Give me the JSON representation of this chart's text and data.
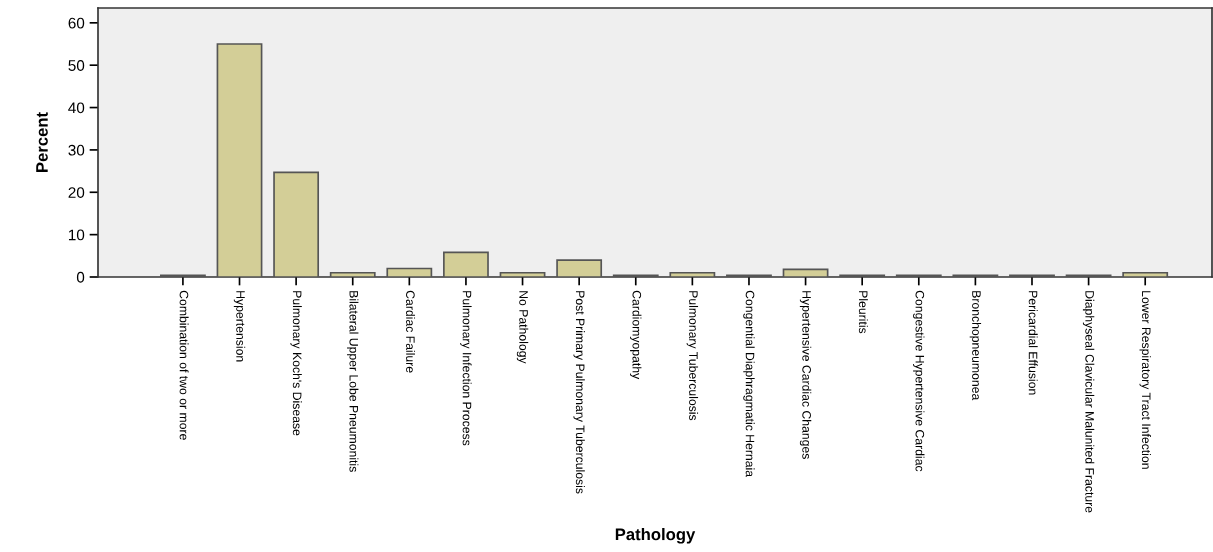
{
  "chart_data": {
    "type": "bar",
    "xlabel": "Pathology",
    "ylabel": "Percent",
    "categories": [
      "Combination of two or more",
      "Hypertension",
      "Pulmonary Koch's Disease",
      "Bilateral Upper Lobe Pneumonitis",
      "Cardiac Failure",
      "Pulmonary Infection Process",
      "No Pathology",
      "Post Primary Pulmonary Tuberculosis",
      "Cardiomyopathy",
      "Pulmonary Tuberculosis",
      "Congential Diaphragmatic Hernaia",
      "Hypertensive Cardiac Changes",
      "Pleuritis",
      "Congestive Hypertensive Cardiac",
      "Bronchopneumonea",
      "Pericardial Effusion",
      "Diaphyseal Clavicular Malunited Fracture",
      "Lower Respiratory Tract Infection"
    ],
    "values": [
      0.4,
      55,
      24.7,
      1.0,
      2.0,
      5.8,
      1.0,
      4.0,
      0.4,
      1.0,
      0.4,
      1.8,
      0.4,
      0.4,
      0.4,
      0.4,
      0.4,
      1.0
    ],
    "color": "#d3ce97",
    "ylim": [
      0,
      63.5
    ],
    "yticks": [
      0,
      10,
      20,
      30,
      40,
      50,
      60
    ],
    "grid": false
  }
}
